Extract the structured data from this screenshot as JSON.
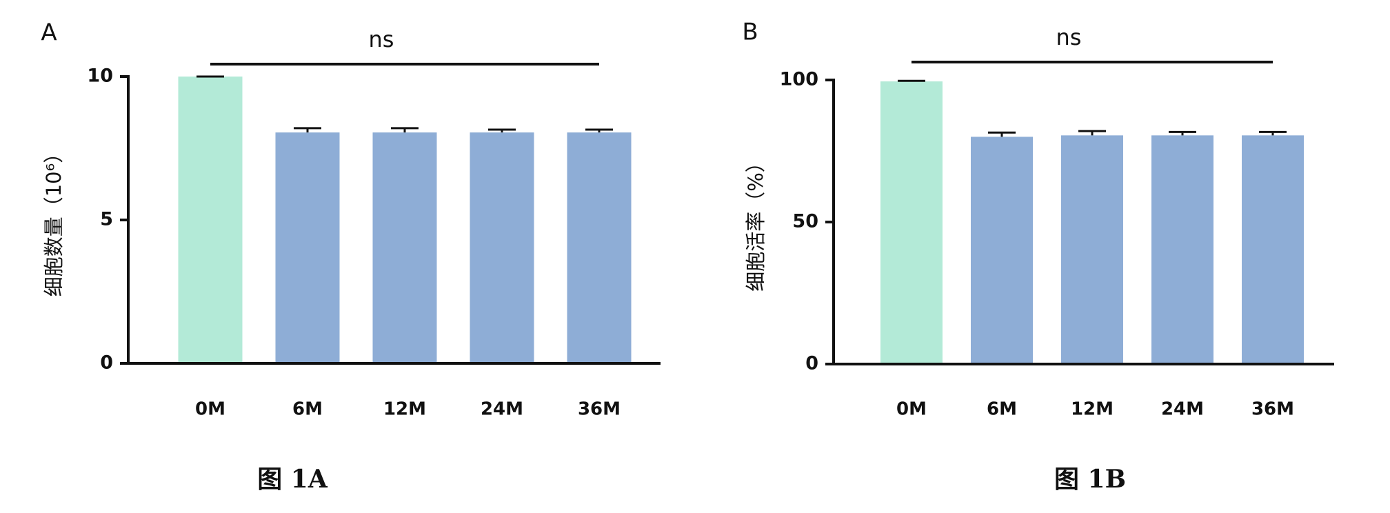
{
  "chart_data": [
    {
      "type": "bar",
      "panel": "A",
      "ylabel": "细胞数量（10⁶）",
      "annotation": "ns",
      "caption": "图 1A",
      "categories": [
        "0M",
        "6M",
        "12M",
        "24M",
        "36M"
      ],
      "values": [
        10,
        8.05,
        8.05,
        8.05,
        8.05
      ],
      "errors": [
        0,
        0.15,
        0.15,
        0.1,
        0.1
      ],
      "colors": [
        "#b3ead7",
        "#8eadd6",
        "#8eadd6",
        "#8eadd6",
        "#8eadd6"
      ],
      "ylim": [
        0,
        10
      ],
      "yticks": [
        0,
        5,
        10
      ]
    },
    {
      "type": "bar",
      "panel": "B",
      "ylabel": "细胞活率（%）",
      "annotation": "ns",
      "caption": "图 1B",
      "categories": [
        "0M",
        "6M",
        "12M",
        "24M",
        "36M"
      ],
      "values": [
        99.5,
        80,
        80.5,
        80.5,
        80.5
      ],
      "errors": [
        0.2,
        1.5,
        1.5,
        1.2,
        1.2
      ],
      "colors": [
        "#b3ead7",
        "#8eadd6",
        "#8eadd6",
        "#8eadd6",
        "#8eadd6"
      ],
      "ylim": [
        0,
        100
      ],
      "yticks": [
        0,
        50,
        100
      ]
    }
  ]
}
